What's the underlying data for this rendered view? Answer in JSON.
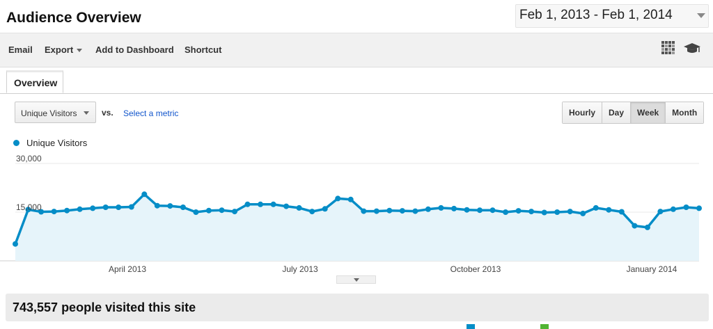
{
  "header": {
    "title": "Audience Overview",
    "date_range": "Feb 1, 2013 - Feb 1, 2014"
  },
  "toolbar": {
    "email_label": "Email",
    "export_label": "Export",
    "add_to_dashboard_label": "Add to Dashboard",
    "shortcut_label": "Shortcut",
    "icons": [
      "grid-icon",
      "graduation-cap-icon"
    ]
  },
  "tabs": [
    {
      "label": "Overview",
      "active": true
    }
  ],
  "controls": {
    "metric_select": "Unique Visitors",
    "vs_label": "vs.",
    "select_metric_link": "Select a metric",
    "granularity": [
      {
        "label": "Hourly",
        "active": false
      },
      {
        "label": "Day",
        "active": false
      },
      {
        "label": "Week",
        "active": true
      },
      {
        "label": "Month",
        "active": false
      }
    ]
  },
  "colors": {
    "series": "#058dc7",
    "area": "#e6f4fa",
    "link": "#1155cc"
  },
  "chart_data": {
    "type": "area",
    "series": [
      {
        "name": "Unique Visitors",
        "values": [
          5200,
          15800,
          15100,
          15200,
          15500,
          15900,
          16200,
          16500,
          16500,
          16600,
          20500,
          17000,
          16900,
          16500,
          15000,
          15500,
          15600,
          15200,
          17400,
          17400,
          17400,
          16800,
          16300,
          15200,
          16000,
          19200,
          18900,
          15300,
          15300,
          15500,
          15400,
          15300,
          15900,
          16300,
          16100,
          15700,
          15600,
          15600,
          15000,
          15400,
          15200,
          14900,
          15000,
          15200,
          14600,
          16300,
          15700,
          15100,
          10800,
          10300,
          15200,
          15900,
          16500,
          16200
        ]
      }
    ],
    "y_tick_labels": [
      "30,000",
      "15,000"
    ],
    "x_tick_labels": [
      "April 2013",
      "July 2013",
      "October 2013",
      "January 2014"
    ],
    "ylim": [
      0,
      30000
    ],
    "grid": true,
    "legend": "top-left"
  },
  "summary": {
    "text": "743,557 people visited this site"
  }
}
